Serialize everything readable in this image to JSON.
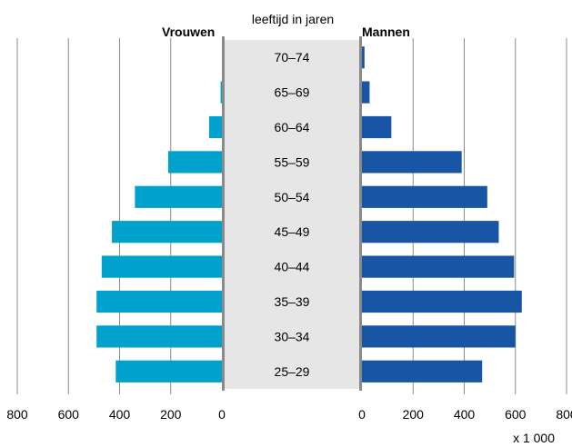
{
  "chart_data": {
    "type": "bar",
    "subtype": "population-pyramid",
    "center_title": "leeftijd in jaren",
    "unit_label": "x 1 000",
    "categories": [
      "70–74",
      "65–69",
      "60–64",
      "55–59",
      "50–54",
      "45–49",
      "40–44",
      "35–39",
      "30–34",
      "25–29"
    ],
    "series": [
      {
        "name": "Vrouwen",
        "side": "left",
        "color": "#00a1cd",
        "values": [
          0,
          5,
          50,
          210,
          340,
          430,
          470,
          490,
          490,
          415
        ]
      },
      {
        "name": "Mannen",
        "side": "right",
        "color": "#1955a5",
        "values": [
          10,
          30,
          115,
          390,
          490,
          535,
          595,
          625,
          600,
          470
        ]
      }
    ],
    "x_ticks_left": [
      "800",
      "600",
      "400",
      "200",
      "0"
    ],
    "x_ticks_right": [
      "0",
      "200",
      "400",
      "600",
      "800"
    ],
    "xlim": [
      0,
      800
    ],
    "grid": true,
    "center_band_color": "#e6e6e6"
  }
}
